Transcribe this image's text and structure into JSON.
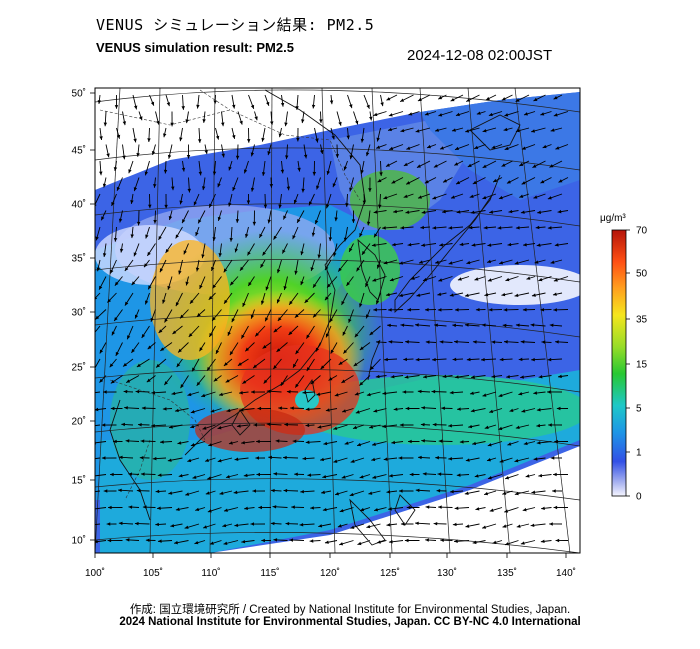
{
  "header": {
    "title_jp": "VENUS シミュレーション結果: PM2.5",
    "title_en": "VENUS simulation result: PM2.5",
    "timestamp": "2024-12-08 02:00JST"
  },
  "map": {
    "lon_ticks": [
      "100˚",
      "105˚",
      "110˚",
      "115˚",
      "120˚",
      "125˚",
      "130˚",
      "135˚",
      "140˚"
    ],
    "lat_ticks": [
      "50˚",
      "45˚",
      "40˚",
      "35˚",
      "30˚",
      "25˚",
      "20˚",
      "15˚",
      "10˚"
    ]
  },
  "colorbar": {
    "unit": "μg/m³",
    "levels": [
      "70",
      "50",
      "35",
      "15",
      "5",
      "1",
      "0"
    ],
    "colors": [
      "#c81e0a",
      "#ff8c14",
      "#f5e61e",
      "#28c828",
      "#1ec8dc",
      "#2864e6",
      "#f0f0ff"
    ]
  },
  "footer": {
    "credit_jp": "作成: 国立環境研究所 / Created by National Institute for Environmental Studies, Japan.",
    "copyright": "2024 National Institute for Environmental Studies, Japan. CC BY-NC 4.0 International"
  }
}
